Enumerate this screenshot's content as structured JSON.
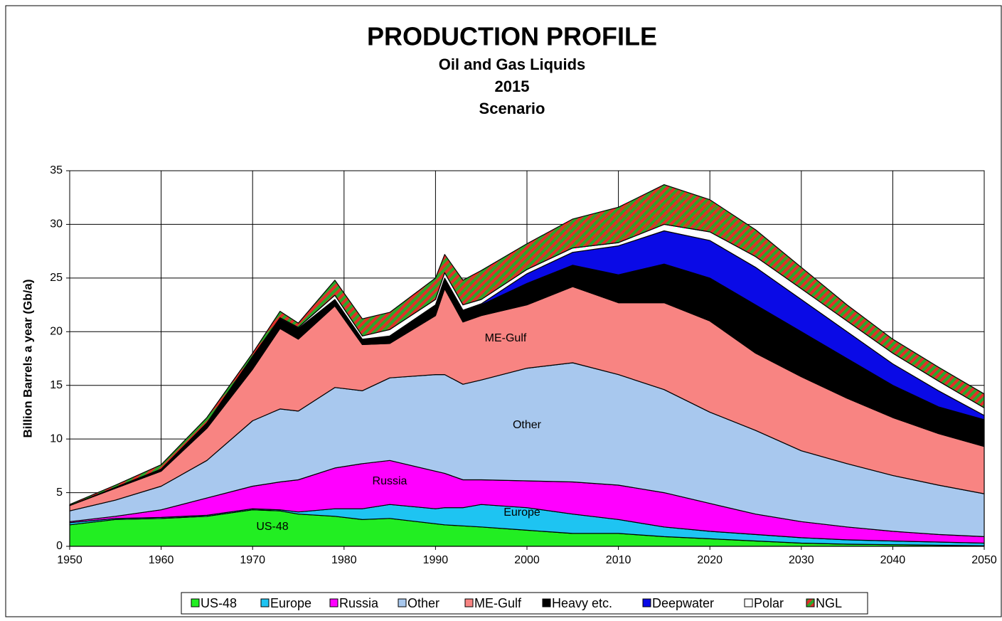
{
  "chart_data": {
    "type": "stacked_area",
    "title": "PRODUCTION PROFILE",
    "subtitle": [
      "Oil and Gas Liquids",
      "2015",
      "Scenario"
    ],
    "y_label": "Billion Barrels a year (Gb/a)",
    "x": [
      1950,
      1955,
      1960,
      1965,
      1970,
      1973,
      1975,
      1979,
      1982,
      1985,
      1990,
      1991,
      1993,
      1995,
      2000,
      2005,
      2010,
      2015,
      2020,
      2025,
      2030,
      2035,
      2040,
      2045,
      2050
    ],
    "series": [
      {
        "name": "US-48",
        "color": "#22ee22",
        "values": [
          2.0,
          2.5,
          2.6,
          2.8,
          3.4,
          3.3,
          3.0,
          2.8,
          2.5,
          2.6,
          2.1,
          2.0,
          1.9,
          1.8,
          1.5,
          1.2,
          1.2,
          0.9,
          0.7,
          0.5,
          0.3,
          0.2,
          0.15,
          0.1,
          0.05
        ]
      },
      {
        "name": "Europe",
        "color": "#1ec4f2",
        "values": [
          0.2,
          0.1,
          0.1,
          0.1,
          0.1,
          0.1,
          0.2,
          0.7,
          1.0,
          1.3,
          1.4,
          1.6,
          1.7,
          2.1,
          2.1,
          1.8,
          1.3,
          0.9,
          0.7,
          0.6,
          0.5,
          0.4,
          0.35,
          0.3,
          0.25
        ]
      },
      {
        "name": "Russia",
        "color": "#ff00ff",
        "values": [
          0.1,
          0.2,
          0.7,
          1.6,
          2.1,
          2.6,
          3.0,
          3.8,
          4.2,
          4.1,
          3.5,
          3.2,
          2.6,
          2.3,
          2.5,
          3.0,
          3.2,
          3.2,
          2.6,
          1.9,
          1.5,
          1.2,
          0.9,
          0.7,
          0.6
        ]
      },
      {
        "name": "Other",
        "color": "#a8c8ee",
        "values": [
          1.0,
          1.5,
          2.2,
          3.5,
          6.1,
          6.8,
          6.4,
          7.5,
          6.8,
          7.7,
          9.0,
          9.2,
          8.9,
          9.3,
          10.5,
          11.1,
          10.3,
          9.6,
          8.5,
          7.8,
          6.6,
          5.9,
          5.2,
          4.6,
          4.0
        ]
      },
      {
        "name": "ME-Gulf",
        "color": "#f88482",
        "values": [
          0.5,
          1.1,
          1.4,
          3.0,
          4.8,
          7.5,
          6.7,
          7.6,
          4.3,
          3.2,
          5.5,
          8.0,
          5.8,
          6.0,
          5.9,
          7.1,
          6.7,
          8.1,
          8.5,
          7.2,
          6.9,
          6.1,
          5.4,
          4.8,
          4.4
        ]
      },
      {
        "name": "Heavy etc.",
        "color": "#000000",
        "values": [
          0,
          0.1,
          0.2,
          0.5,
          1.1,
          0.9,
          1.0,
          0.6,
          0.5,
          0.7,
          1.0,
          1.0,
          1.1,
          1.0,
          2.0,
          2.0,
          2.6,
          3.6,
          4.0,
          4.5,
          4.2,
          3.7,
          3.0,
          2.5,
          2.5
        ]
      },
      {
        "name": "Deepwater",
        "color": "#0a0ae6",
        "values": [
          0,
          0,
          0,
          0,
          0,
          0,
          0,
          0,
          0,
          0,
          0,
          0,
          0,
          0.1,
          0.9,
          1.2,
          2.7,
          3.1,
          3.5,
          3.5,
          3.0,
          2.5,
          2.0,
          1.5,
          0.4
        ]
      },
      {
        "name": "Polar",
        "color": "#ffffff",
        "values": [
          0,
          0,
          0,
          0,
          0.1,
          0.1,
          0.1,
          0.4,
          0.3,
          0.6,
          0.5,
          0.5,
          0.5,
          0.4,
          0.4,
          0.4,
          0.3,
          0.6,
          0.8,
          1.0,
          1.0,
          1.0,
          1.0,
          0.9,
          0.7
        ]
      },
      {
        "name": "NGL",
        "color": "#2aa82a",
        "hatch_color": "#e0302a",
        "values": [
          0.1,
          0.2,
          0.4,
          0.5,
          0.3,
          0.6,
          0.4,
          1.4,
          1.6,
          1.6,
          2.0,
          1.7,
          2.3,
          2.7,
          2.4,
          2.7,
          3.3,
          3.7,
          3.0,
          2.5,
          2.0,
          1.5,
          1.3,
          1.3,
          1.3
        ]
      }
    ],
    "annotations": [
      "ME-Gulf",
      "Other",
      "Russia",
      "Europe",
      "US-48"
    ],
    "xlim": [
      1950,
      2050
    ],
    "xticks": [
      1950,
      1960,
      1970,
      1980,
      1990,
      2000,
      2010,
      2020,
      2030,
      2040,
      2050
    ],
    "ylim": [
      0,
      35
    ],
    "yticks": [
      0,
      5,
      10,
      15,
      20,
      25,
      30,
      35
    ],
    "grid": true,
    "legend": "bottom"
  }
}
